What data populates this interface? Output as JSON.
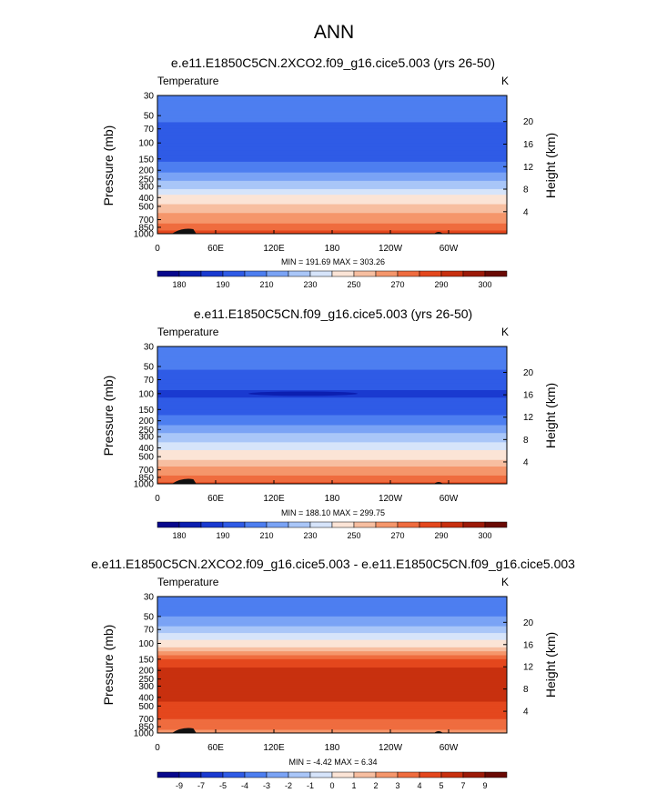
{
  "page_title": "ANN",
  "shared": {
    "field_label": "Temperature",
    "units_label": "K",
    "pressure_axis_label": "Pressure (mb)",
    "height_axis_label": "Height (km)",
    "pressure_ticks": [
      "30",
      "50",
      "70",
      "100",
      "150",
      "200",
      "250",
      "300",
      "400",
      "500",
      "700",
      "850",
      "1000"
    ],
    "pressure_tick_values": [
      30,
      50,
      70,
      100,
      150,
      200,
      250,
      300,
      400,
      500,
      700,
      850,
      1000
    ],
    "height_ticks": [
      "20",
      "16",
      "12",
      "8",
      "4"
    ],
    "height_tick_values": [
      20,
      16,
      12,
      8,
      4
    ],
    "lon_ticks": [
      "0",
      "60E",
      "120E",
      "180",
      "120W",
      "60W"
    ],
    "lon_tick_values": [
      0,
      60,
      120,
      180,
      240,
      300
    ],
    "lon_range": [
      0,
      360
    ]
  },
  "chart_data": [
    {
      "type": "heatmap",
      "title": "e.e11.E1850C5CN.2XCO2.f09_g16.cice5.003 (yrs 26-50)",
      "xlabel": "",
      "ylabel": "Pressure (mb)",
      "ylabel_right": "Height (km)",
      "xlim": [
        0,
        360
      ],
      "ylim": [
        1000,
        30
      ],
      "stats_text": "MIN = 191.69  MAX = 303.26",
      "min": 191.69,
      "max": 303.26,
      "colorbar_labels": [
        "180",
        "190",
        "210",
        "230",
        "250",
        "270",
        "290",
        "300"
      ],
      "levels": [
        {
          "p": 30,
          "value": 214
        },
        {
          "p": 50,
          "value": 212
        },
        {
          "p": 70,
          "value": 207
        },
        {
          "p": 100,
          "value": 203
        },
        {
          "p": 150,
          "value": 208
        },
        {
          "p": 200,
          "value": 218
        },
        {
          "p": 250,
          "value": 228
        },
        {
          "p": 300,
          "value": 238
        },
        {
          "p": 400,
          "value": 252
        },
        {
          "p": 500,
          "value": 262
        },
        {
          "p": 700,
          "value": 276
        },
        {
          "p": 850,
          "value": 286
        },
        {
          "p": 1000,
          "value": 296
        }
      ]
    },
    {
      "type": "heatmap",
      "title": "e.e11.E1850C5CN.f09_g16.cice5.003 (yrs 26-50)",
      "xlabel": "",
      "ylabel": "Pressure (mb)",
      "ylabel_right": "Height (km)",
      "xlim": [
        0,
        360
      ],
      "ylim": [
        1000,
        30
      ],
      "stats_text": "MIN = 188.10  MAX = 299.75",
      "min": 188.1,
      "max": 299.75,
      "colorbar_labels": [
        "180",
        "190",
        "210",
        "230",
        "250",
        "270",
        "290",
        "300"
      ],
      "levels": [
        {
          "p": 30,
          "value": 214
        },
        {
          "p": 50,
          "value": 211
        },
        {
          "p": 70,
          "value": 205
        },
        {
          "p": 100,
          "value": 199
        },
        {
          "p": 150,
          "value": 205
        },
        {
          "p": 200,
          "value": 215
        },
        {
          "p": 250,
          "value": 225
        },
        {
          "p": 300,
          "value": 235
        },
        {
          "p": 400,
          "value": 248
        },
        {
          "p": 500,
          "value": 258
        },
        {
          "p": 700,
          "value": 273
        },
        {
          "p": 850,
          "value": 283
        },
        {
          "p": 1000,
          "value": 293
        }
      ]
    },
    {
      "type": "heatmap",
      "title": "e.e11.E1850C5CN.2XCO2.f09_g16.cice5.003 - e.e11.E1850C5CN.f09_g16.cice5.003",
      "xlabel": "",
      "ylabel": "Pressure (mb)",
      "ylabel_right": "Height (km)",
      "xlim": [
        0,
        360
      ],
      "ylim": [
        1000,
        30
      ],
      "stats_text": "MIN =  -4.42  MAX =   6.34",
      "min": -4.42,
      "max": 6.34,
      "colorbar_labels": [
        "-9",
        "-7",
        "-5",
        "-4",
        "-3",
        "-2",
        "-1",
        "0",
        "1",
        "2",
        "3",
        "4",
        "5",
        "7",
        "9"
      ],
      "levels": [
        {
          "p": 30,
          "value": -4
        },
        {
          "p": 50,
          "value": -3
        },
        {
          "p": 70,
          "value": -1.5
        },
        {
          "p": 100,
          "value": 0.5
        },
        {
          "p": 150,
          "value": 4
        },
        {
          "p": 200,
          "value": 5.5
        },
        {
          "p": 250,
          "value": 6
        },
        {
          "p": 300,
          "value": 6
        },
        {
          "p": 400,
          "value": 5.5
        },
        {
          "p": 500,
          "value": 4.5
        },
        {
          "p": 700,
          "value": 4
        },
        {
          "p": 850,
          "value": 3.5
        },
        {
          "p": 1000,
          "value": 2.5
        }
      ]
    }
  ],
  "colors": {
    "abs_palette": [
      "#08088c",
      "#0c1fb0",
      "#1a3ad0",
      "#2f5be6",
      "#4d7ef0",
      "#7aa3f5",
      "#a9c6f8",
      "#d6e4fa",
      "#fbe4d6",
      "#f7bea0",
      "#f5966b",
      "#ef6c3f",
      "#e4471d",
      "#c8300f",
      "#9c1a08",
      "#6a0a04"
    ],
    "diff_palette": [
      "#08088c",
      "#0c1fb0",
      "#1a3ad0",
      "#2f5be6",
      "#4d7ef0",
      "#7aa3f5",
      "#a9c6f8",
      "#d6e4fa",
      "#fbe4d6",
      "#f7bea0",
      "#f5966b",
      "#ef6c3f",
      "#e4471d",
      "#c8300f",
      "#9c1a08",
      "#6a0a04"
    ],
    "topography": "#111111"
  }
}
